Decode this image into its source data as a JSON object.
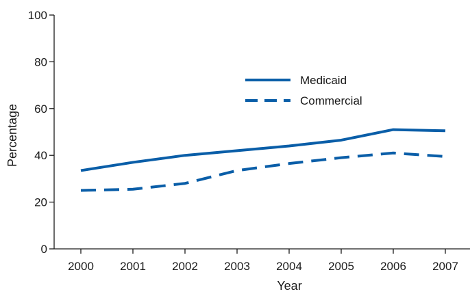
{
  "chart_data": {
    "type": "line",
    "title": "",
    "xlabel": "Year",
    "ylabel": "Percentage",
    "categories": [
      "2000",
      "2001",
      "2002",
      "2003",
      "2004",
      "2005",
      "2006",
      "2007"
    ],
    "ylim": [
      0,
      100
    ],
    "yticks": [
      0,
      20,
      40,
      60,
      80,
      100
    ],
    "grid": false,
    "legend_position": "upper-center",
    "series": [
      {
        "name": "Medicaid",
        "style": "solid",
        "color": "#0a5ea8",
        "values": [
          33.5,
          37,
          40,
          42,
          44,
          46.5,
          51,
          50.5
        ]
      },
      {
        "name": "Commercial",
        "style": "dashed",
        "color": "#0a5ea8",
        "values": [
          25,
          25.5,
          28,
          33.5,
          36.5,
          39,
          41,
          39.5
        ]
      }
    ]
  }
}
